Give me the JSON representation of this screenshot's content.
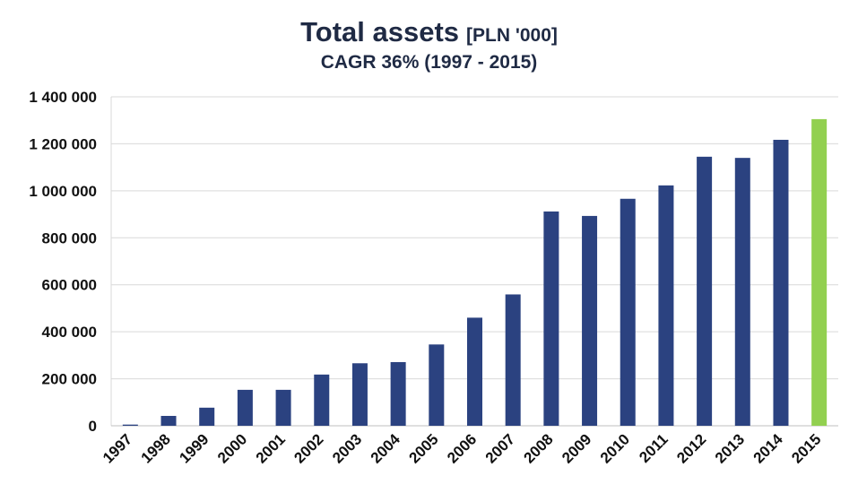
{
  "chart_data": {
    "type": "bar",
    "title": "Total assets",
    "title_unit": "[PLN '000]",
    "subtitle": "CAGR 36% (1997 - 2015)",
    "categories": [
      "1997",
      "1998",
      "1999",
      "2000",
      "2001",
      "2002",
      "2003",
      "2004",
      "2005",
      "2006",
      "2007",
      "2008",
      "2009",
      "2010",
      "2011",
      "2012",
      "2013",
      "2014",
      "2015"
    ],
    "values": [
      5000,
      42000,
      77000,
      153000,
      153000,
      218000,
      266000,
      271000,
      346000,
      460000,
      559000,
      912000,
      893000,
      966000,
      1023000,
      1145000,
      1140000,
      1217000,
      1305000
    ],
    "ylim": [
      0,
      1400000
    ],
    "yticks": [
      0,
      200000,
      400000,
      600000,
      800000,
      1000000,
      1200000,
      1400000
    ],
    "ytick_labels": [
      "0",
      "200 000",
      "400 000",
      "600 000",
      "800 000",
      "1 000 000",
      "1 200 000",
      "1 400 000"
    ],
    "grid": true,
    "colors": {
      "bar": "#2b4280",
      "highlight": "#92d050",
      "grid": "#d9d9d9"
    },
    "highlight_index": 18
  }
}
